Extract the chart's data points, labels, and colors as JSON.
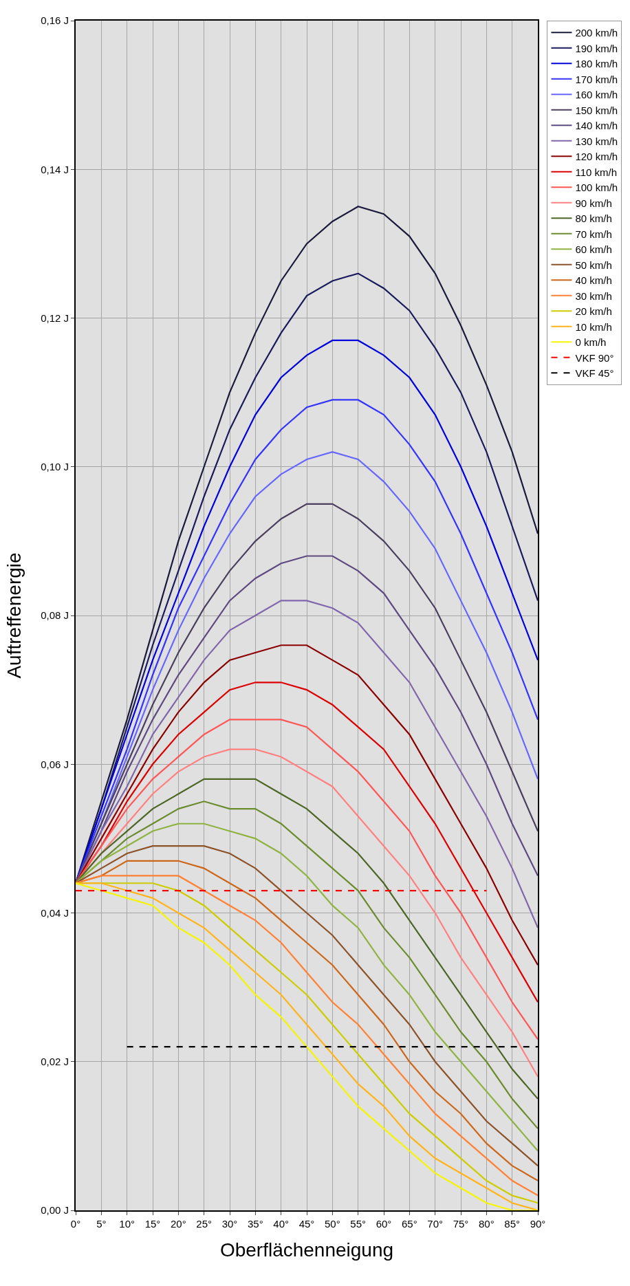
{
  "chart_data": {
    "type": "line",
    "xlabel": "Oberflächenneigung",
    "ylabel": "Auftreffenergie",
    "x": [
      0,
      5,
      10,
      15,
      20,
      25,
      30,
      35,
      40,
      45,
      50,
      55,
      60,
      65,
      70,
      75,
      80,
      85,
      90
    ],
    "xlim": [
      0,
      90
    ],
    "xticks": [
      {
        "value": 0,
        "label": "0°"
      },
      {
        "value": 5,
        "label": "5°"
      },
      {
        "value": 10,
        "label": "10°"
      },
      {
        "value": 15,
        "label": "15°"
      },
      {
        "value": 20,
        "label": "20°"
      },
      {
        "value": 25,
        "label": "25°"
      },
      {
        "value": 30,
        "label": "30°"
      },
      {
        "value": 35,
        "label": "35°"
      },
      {
        "value": 40,
        "label": "40°"
      },
      {
        "value": 45,
        "label": "45°"
      },
      {
        "value": 50,
        "label": "50°"
      },
      {
        "value": 55,
        "label": "55°"
      },
      {
        "value": 60,
        "label": "60°"
      },
      {
        "value": 65,
        "label": "65°"
      },
      {
        "value": 70,
        "label": "70°"
      },
      {
        "value": 75,
        "label": "75°"
      },
      {
        "value": 80,
        "label": "80°"
      },
      {
        "value": 85,
        "label": "85°"
      },
      {
        "value": 90,
        "label": "90°"
      }
    ],
    "ylim": [
      0,
      0.16
    ],
    "yticks": [
      {
        "value": 0,
        "label": "0,00 J"
      },
      {
        "value": 0.02,
        "label": "0,02 J"
      },
      {
        "value": 0.04,
        "label": "0,04 J"
      },
      {
        "value": 0.06,
        "label": "0,06 J"
      },
      {
        "value": 0.08,
        "label": "0,08 J"
      },
      {
        "value": 0.1,
        "label": "0,10 J"
      },
      {
        "value": 0.12,
        "label": "0,12 J"
      },
      {
        "value": 0.14,
        "label": "0,14 J"
      },
      {
        "value": 0.16,
        "label": "0,16 J"
      }
    ],
    "grid": true,
    "legend": "right",
    "marker": "none",
    "line_style": "solid",
    "series": [
      {
        "name": "200 km/h",
        "color": "#1a1a3a",
        "values": [
          0.044,
          0.055,
          0.066,
          0.078,
          0.09,
          0.1,
          0.11,
          0.118,
          0.125,
          0.13,
          0.133,
          0.135,
          0.134,
          0.131,
          0.126,
          0.119,
          0.111,
          0.102,
          0.091
        ]
      },
      {
        "name": "190 km/h",
        "color": "#1a1a5c",
        "values": [
          0.044,
          0.054,
          0.065,
          0.076,
          0.086,
          0.096,
          0.105,
          0.112,
          0.118,
          0.123,
          0.125,
          0.126,
          0.124,
          0.121,
          0.116,
          0.11,
          0.102,
          0.092,
          0.082
        ]
      },
      {
        "name": "180 km/h",
        "color": "#0000dd",
        "values": [
          0.044,
          0.054,
          0.064,
          0.074,
          0.083,
          0.092,
          0.1,
          0.107,
          0.112,
          0.115,
          0.117,
          0.117,
          0.115,
          0.112,
          0.107,
          0.1,
          0.092,
          0.083,
          0.074
        ]
      },
      {
        "name": "170 km/h",
        "color": "#3333ff",
        "values": [
          0.044,
          0.053,
          0.062,
          0.072,
          0.081,
          0.088,
          0.095,
          0.101,
          0.105,
          0.108,
          0.109,
          0.109,
          0.107,
          0.103,
          0.098,
          0.091,
          0.083,
          0.075,
          0.066
        ]
      },
      {
        "name": "160 km/h",
        "color": "#6666ff",
        "values": [
          0.044,
          0.052,
          0.061,
          0.07,
          0.078,
          0.085,
          0.091,
          0.096,
          0.099,
          0.101,
          0.102,
          0.101,
          0.098,
          0.094,
          0.089,
          0.082,
          0.075,
          0.067,
          0.058
        ]
      },
      {
        "name": "150 km/h",
        "color": "#4a3f5c",
        "values": [
          0.044,
          0.052,
          0.06,
          0.068,
          0.075,
          0.081,
          0.086,
          0.09,
          0.093,
          0.095,
          0.095,
          0.093,
          0.09,
          0.086,
          0.081,
          0.074,
          0.067,
          0.059,
          0.051
        ]
      },
      {
        "name": "140 km/h",
        "color": "#5e4a80",
        "values": [
          0.044,
          0.051,
          0.059,
          0.066,
          0.072,
          0.077,
          0.082,
          0.085,
          0.087,
          0.088,
          0.088,
          0.086,
          0.083,
          0.078,
          0.073,
          0.067,
          0.06,
          0.052,
          0.045
        ]
      },
      {
        "name": "130 km/h",
        "color": "#8066aa",
        "values": [
          0.044,
          0.051,
          0.057,
          0.064,
          0.069,
          0.074,
          0.078,
          0.08,
          0.082,
          0.082,
          0.081,
          0.079,
          0.075,
          0.071,
          0.065,
          0.059,
          0.053,
          0.046,
          0.038
        ]
      },
      {
        "name": "120 km/h",
        "color": "#8b0000",
        "values": [
          0.044,
          0.05,
          0.056,
          0.062,
          0.067,
          0.071,
          0.074,
          0.075,
          0.076,
          0.076,
          0.074,
          0.072,
          0.068,
          0.064,
          0.058,
          0.052,
          0.046,
          0.039,
          0.033
        ]
      },
      {
        "name": "110 km/h",
        "color": "#dd0000",
        "values": [
          0.044,
          0.049,
          0.055,
          0.06,
          0.064,
          0.067,
          0.07,
          0.071,
          0.071,
          0.07,
          0.068,
          0.065,
          0.062,
          0.057,
          0.052,
          0.046,
          0.04,
          0.034,
          0.028
        ]
      },
      {
        "name": "100 km/h",
        "color": "#ff5555",
        "values": [
          0.044,
          0.049,
          0.054,
          0.058,
          0.061,
          0.064,
          0.066,
          0.066,
          0.066,
          0.065,
          0.062,
          0.059,
          0.055,
          0.051,
          0.045,
          0.04,
          0.034,
          0.028,
          0.023
        ]
      },
      {
        "name": "90 km/h",
        "color": "#ff8080",
        "values": [
          0.044,
          0.048,
          0.052,
          0.056,
          0.059,
          0.061,
          0.062,
          0.062,
          0.061,
          0.059,
          0.057,
          0.053,
          0.049,
          0.045,
          0.04,
          0.034,
          0.029,
          0.024,
          0.018
        ]
      },
      {
        "name": "80 km/h",
        "color": "#4d6626",
        "values": [
          0.044,
          0.048,
          0.051,
          0.054,
          0.056,
          0.058,
          0.058,
          0.058,
          0.056,
          0.054,
          0.051,
          0.048,
          0.044,
          0.039,
          0.034,
          0.029,
          0.024,
          0.019,
          0.015
        ]
      },
      {
        "name": "70 km/h",
        "color": "#6b8c2e",
        "values": [
          0.044,
          0.047,
          0.05,
          0.052,
          0.054,
          0.055,
          0.054,
          0.054,
          0.052,
          0.049,
          0.046,
          0.043,
          0.038,
          0.034,
          0.029,
          0.024,
          0.02,
          0.015,
          0.011
        ]
      },
      {
        "name": "60 km/h",
        "color": "#8fb340",
        "values": [
          0.044,
          0.047,
          0.049,
          0.051,
          0.052,
          0.052,
          0.051,
          0.05,
          0.048,
          0.045,
          0.041,
          0.038,
          0.033,
          0.029,
          0.024,
          0.02,
          0.016,
          0.012,
          0.008
        ]
      },
      {
        "name": "50 km/h",
        "color": "#8c5229",
        "values": [
          0.044,
          0.046,
          0.048,
          0.049,
          0.049,
          0.049,
          0.048,
          0.046,
          0.043,
          0.04,
          0.037,
          0.033,
          0.029,
          0.025,
          0.02,
          0.016,
          0.012,
          0.009,
          0.006
        ]
      },
      {
        "name": "40 km/h",
        "color": "#cc6619",
        "values": [
          0.044,
          0.045,
          0.047,
          0.047,
          0.047,
          0.046,
          0.044,
          0.042,
          0.039,
          0.036,
          0.033,
          0.029,
          0.025,
          0.02,
          0.016,
          0.013,
          0.009,
          0.006,
          0.004
        ]
      },
      {
        "name": "30 km/h",
        "color": "#ff8033",
        "values": [
          0.044,
          0.045,
          0.045,
          0.045,
          0.045,
          0.043,
          0.041,
          0.039,
          0.036,
          0.032,
          0.028,
          0.025,
          0.021,
          0.017,
          0.013,
          0.01,
          0.007,
          0.004,
          0.002
        ]
      },
      {
        "name": "20 km/h",
        "color": "#cccc00",
        "values": [
          0.044,
          0.044,
          0.044,
          0.044,
          0.043,
          0.041,
          0.038,
          0.035,
          0.032,
          0.029,
          0.025,
          0.021,
          0.017,
          0.013,
          0.01,
          0.007,
          0.004,
          0.002,
          0.001
        ]
      },
      {
        "name": "10 km/h",
        "color": "#ffb31a",
        "values": [
          0.044,
          0.044,
          0.043,
          0.042,
          0.04,
          0.038,
          0.035,
          0.032,
          0.029,
          0.025,
          0.021,
          0.017,
          0.014,
          0.01,
          0.007,
          0.005,
          0.003,
          0.001,
          0.0
        ]
      },
      {
        "name": "0 km/h",
        "color": "#f5f500",
        "values": [
          0.044,
          0.043,
          0.042,
          0.041,
          0.038,
          0.036,
          0.033,
          0.029,
          0.026,
          0.022,
          0.018,
          0.014,
          0.011,
          0.008,
          0.005,
          0.003,
          0.001,
          0.0,
          0.0
        ]
      },
      {
        "name": "VKF 90°",
        "color": "#ff0000",
        "line_style": "dashed",
        "x": [
          0,
          80
        ],
        "values": [
          0.043,
          0.043
        ]
      },
      {
        "name": "VKF 45°",
        "color": "#000000",
        "line_style": "dashed",
        "x": [
          10,
          90
        ],
        "values": [
          0.022,
          0.022
        ]
      }
    ]
  }
}
